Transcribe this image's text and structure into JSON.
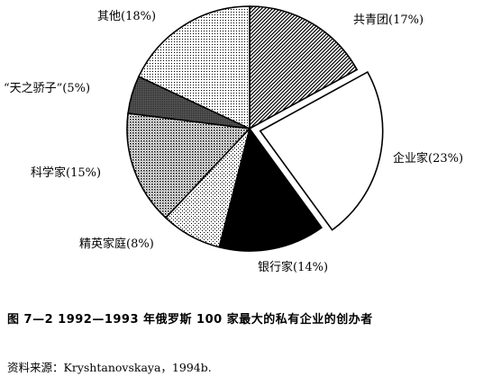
{
  "chart_data": {
    "type": "pie",
    "title": "图 7—2   1992—1993 年俄罗斯 100 家最大的私有企业的创办者",
    "source": "资料来源：Kryshtanovskaya，1994b.",
    "slices": [
      {
        "label": "共青团(17%)",
        "value": 17,
        "pattern": "diag-dense"
      },
      {
        "label": "企业家(23%)",
        "value": 23,
        "pattern": "white"
      },
      {
        "label": "银行家(14%)",
        "value": 14,
        "pattern": "black"
      },
      {
        "label": "精英家庭(8%)",
        "value": 8,
        "pattern": "dots-light"
      },
      {
        "label": "科学家(15%)",
        "value": 15,
        "pattern": "dots-dense"
      },
      {
        "label": "“天之骄子”(5%)",
        "value": 5,
        "pattern": "grey-dark"
      },
      {
        "label": "其他(18%)",
        "value": 18,
        "pattern": "dots-fine"
      }
    ]
  }
}
